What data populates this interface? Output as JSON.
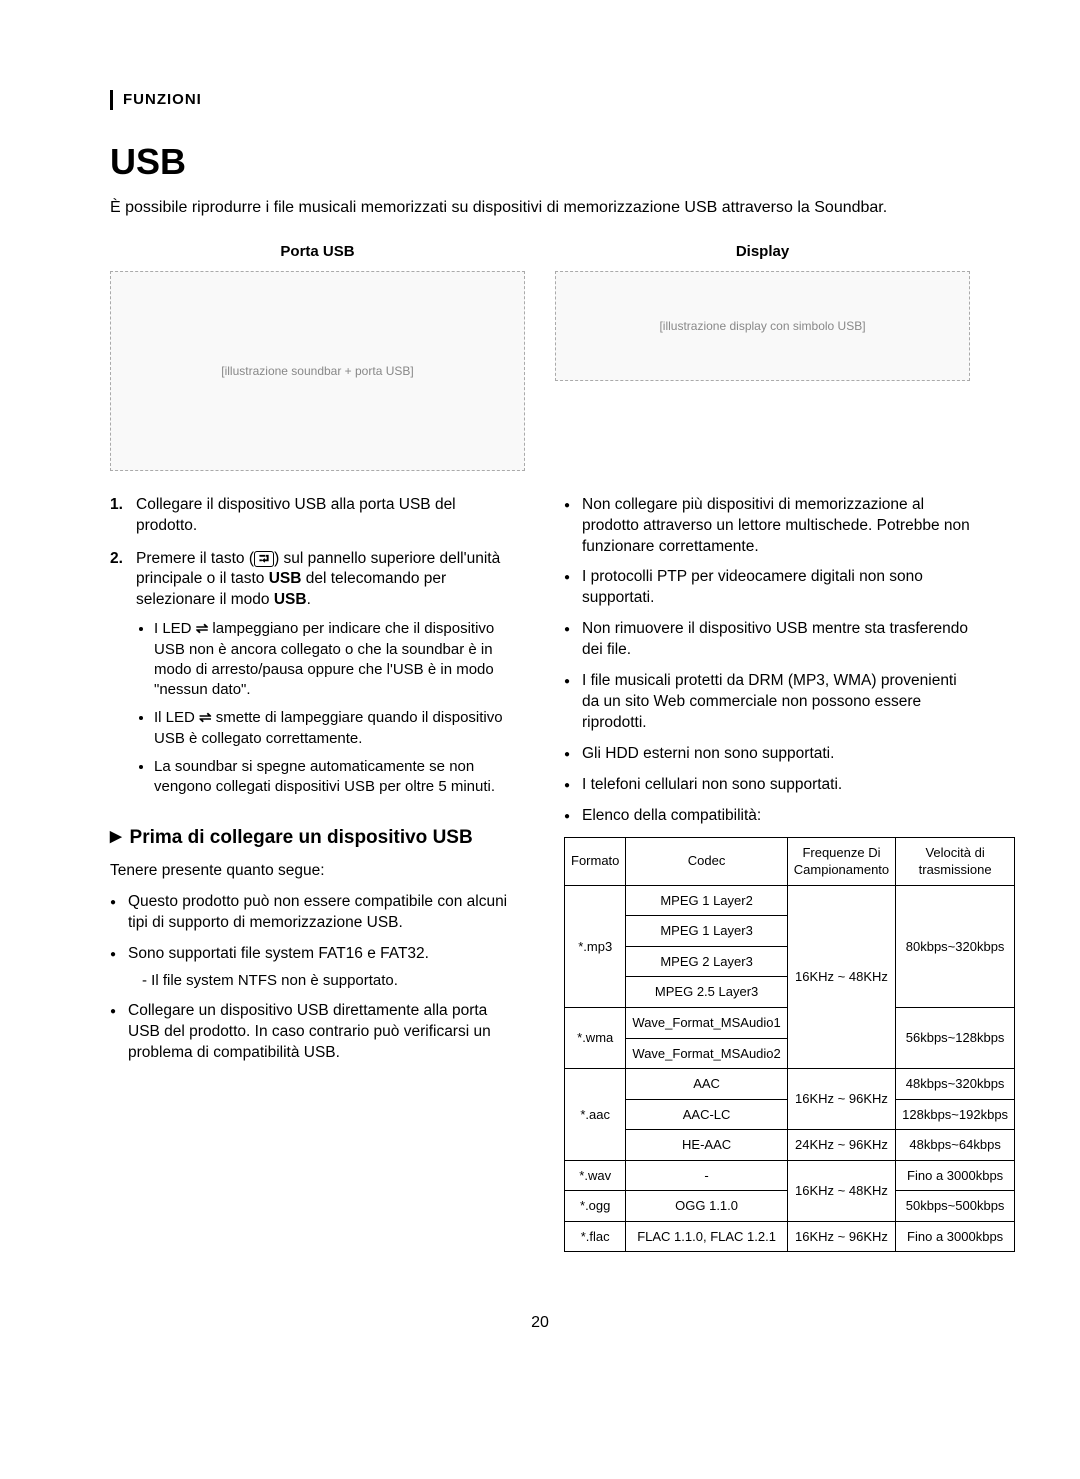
{
  "section_label": "FUNZIONI",
  "title": "USB",
  "intro": "È possibile riprodurre i file musicali memorizzati su dispositivi di memorizzazione USB attraverso la Soundbar.",
  "image_left_caption": "Porta USB",
  "image_right_caption": "Display",
  "placeholder_left": "[illustrazione soundbar + porta USB]",
  "placeholder_right": "[illustrazione display con simbolo USB]",
  "steps": [
    {
      "num": "1.",
      "text_before": "Collegare il dispositivo USB alla porta USB del prodotto."
    },
    {
      "num": "2.",
      "html": "Premere il tasto (<span class=\"inline-icon\">⮒</span>) sul pannello superiore dell'unità principale o il tasto <b>USB</b> del telecomando per selezionare il modo <b>USB</b>.",
      "sub": [
        "I LED <span class=\"usb-sym\">⇌</span> lampeggiano per indicare che il dispositivo USB non è ancora collegato o che la soundbar è in modo di arresto/pausa oppure che l'USB è in modo \"nessun dato\".",
        "Il LED <span class=\"usb-sym\">⇌</span> smette di lampeggiare quando il dispositivo USB è collegato correttamente.",
        "La soundbar si spegne automaticamente se non vengono collegati dispositivi USB per oltre 5 minuti."
      ]
    }
  ],
  "subhead": "Prima di collegare un dispositivo USB",
  "lead": "Tenere presente quanto segue:",
  "left_bullets": [
    {
      "text": "Questo prodotto può non essere compatibile con alcuni tipi di supporto di memorizzazione USB."
    },
    {
      "text": "Sono supportati file system FAT16 e FAT32.",
      "dash": "- Il file system NTFS non è supportato."
    },
    {
      "text": "Collegare un dispositivo USB direttamente alla porta USB del prodotto. In caso contrario può verificarsi un problema di compatibilità USB."
    }
  ],
  "right_bullets": [
    "Non collegare più dispositivi di memorizzazione al prodotto attraverso un lettore multischede. Potrebbe non funzionare correttamente.",
    "I protocolli PTP per videocamere digitali non sono supportati.",
    "Non rimuovere il dispositivo USB mentre sta trasferendo dei file.",
    "I file musicali protetti da DRM (MP3, WMA) provenienti da un sito Web commerciale non possono essere riprodotti.",
    "Gli HDD esterni non sono supportati.",
    "I telefoni cellulari non sono supportati.",
    "Elenco della compatibilità:"
  ],
  "table": {
    "headers": [
      "Formato",
      "Codec",
      "Frequenze Di Campionamento",
      "Velocità di trasmissione"
    ],
    "rows": [
      {
        "format": "*.mp3",
        "format_rowspan": 4,
        "codec": "MPEG 1 Layer2",
        "freq": "16KHz ~ 48KHz",
        "freq_rowspan": 6,
        "rate": "80kbps~320kbps",
        "rate_rowspan": 4
      },
      {
        "codec": "MPEG 1 Layer3"
      },
      {
        "codec": "MPEG 2 Layer3"
      },
      {
        "codec": "MPEG 2.5 Layer3"
      },
      {
        "format": "*.wma",
        "format_rowspan": 2,
        "codec": "Wave_Format_MSAudio1",
        "rate": "56kbps~128kbps",
        "rate_rowspan": 2
      },
      {
        "codec": "Wave_Format_MSAudio2"
      },
      {
        "format": "*.aac",
        "format_rowspan": 3,
        "codec": "AAC",
        "freq": "16KHz ~ 96KHz",
        "freq_rowspan": 2,
        "rate": "48kbps~320kbps"
      },
      {
        "codec": "AAC-LC",
        "rate": "128kbps~192kbps"
      },
      {
        "codec": "HE-AAC",
        "freq": "24KHz ~ 96KHz",
        "rate": "48kbps~64kbps"
      },
      {
        "format": "*.wav",
        "codec": "-",
        "freq": "16KHz ~ 48KHz",
        "freq_rowspan": 2,
        "rate": "Fino a 3000kbps"
      },
      {
        "format": "*.ogg",
        "codec": "OGG 1.1.0",
        "rate": "50kbps~500kbps"
      },
      {
        "format": "*.flac",
        "codec": "FLAC 1.1.0, FLAC 1.2.1",
        "freq": "16KHz ~ 96KHz",
        "rate": "Fino a 3000kbps"
      }
    ]
  },
  "page_number": "20"
}
